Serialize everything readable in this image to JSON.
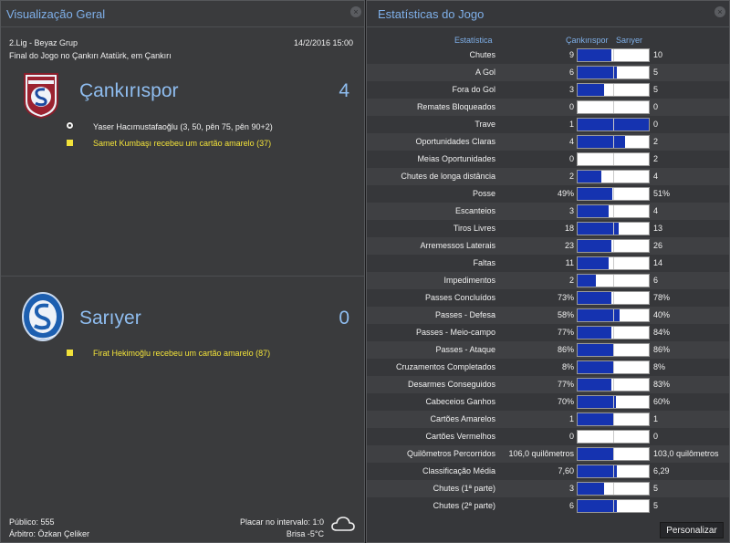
{
  "overview": {
    "title": "Visualização Geral",
    "competition": "2.Lig - Beyaz Grup",
    "datetime": "14/2/2016 15:00",
    "venue": "Final do Jogo no Çankırı Atatürk, em Çankırı",
    "home": {
      "name": "Çankırıspor",
      "score": "4",
      "events": [
        {
          "type": "goal",
          "text": "Yaser Hacımustafaoğlu (3, 50, pên 75, pên 90+2)"
        },
        {
          "type": "card",
          "text": "Samet Kumbaşı recebeu um cartão amarelo (37)"
        }
      ]
    },
    "away": {
      "name": "Sarıyer",
      "score": "0",
      "events": [
        {
          "type": "card",
          "text": "Firat Hekimoğlu recebeu um cartão amarelo (87)"
        }
      ]
    },
    "attendance": "Público: 555",
    "referee": "Árbitro: Özkan Çeliker",
    "halftime": "Placar no intervalo: 1:0",
    "weather": "Brisa -5°C",
    "weather_icon": "cloud-icon"
  },
  "stats": {
    "title": "Estatísticas do Jogo",
    "col_stat": "Estatística",
    "col_home": "Çankırıspor",
    "col_away": "Sarıyer",
    "button": "Personalizar",
    "bar_home_color": "#1533b0",
    "bar_away_color": "#ffffff",
    "rows": [
      {
        "label": "Chutes",
        "home": "9",
        "away": "10",
        "share": 0.47
      },
      {
        "label": "A Gol",
        "home": "6",
        "away": "5",
        "share": 0.55
      },
      {
        "label": "Fora do Gol",
        "home": "3",
        "away": "5",
        "share": 0.375
      },
      {
        "label": "Remates Bloqueados",
        "home": "0",
        "away": "0",
        "share": 0.0
      },
      {
        "label": "Trave",
        "home": "1",
        "away": "0",
        "share": 1.0
      },
      {
        "label": "Oportunidades Claras",
        "home": "4",
        "away": "2",
        "share": 0.67
      },
      {
        "label": "Meias Oportunidades",
        "home": "0",
        "away": "2",
        "share": 0.0
      },
      {
        "label": "Chutes de longa distância",
        "home": "2",
        "away": "4",
        "share": 0.33
      },
      {
        "label": "Posse",
        "home": "49%",
        "away": "51%",
        "share": 0.49
      },
      {
        "label": "Escanteios",
        "home": "3",
        "away": "4",
        "share": 0.43
      },
      {
        "label": "Tiros Livres",
        "home": "18",
        "away": "13",
        "share": 0.58
      },
      {
        "label": "Arremessos Laterais",
        "home": "23",
        "away": "26",
        "share": 0.47
      },
      {
        "label": "Faltas",
        "home": "11",
        "away": "14",
        "share": 0.44
      },
      {
        "label": "Impedimentos",
        "home": "2",
        "away": "6",
        "share": 0.25
      },
      {
        "label": "Passes Concluídos",
        "home": "73%",
        "away": "78%",
        "share": 0.48
      },
      {
        "label": "Passes - Defesa",
        "home": "58%",
        "away": "40%",
        "share": 0.59
      },
      {
        "label": "Passes - Meio-campo",
        "home": "77%",
        "away": "84%",
        "share": 0.48
      },
      {
        "label": "Passes - Ataque",
        "home": "86%",
        "away": "86%",
        "share": 0.5
      },
      {
        "label": "Cruzamentos Completados",
        "home": "8%",
        "away": "8%",
        "share": 0.5
      },
      {
        "label": "Desarmes Conseguidos",
        "home": "77%",
        "away": "83%",
        "share": 0.48
      },
      {
        "label": "Cabeceios Ganhos",
        "home": "70%",
        "away": "60%",
        "share": 0.54
      },
      {
        "label": "Cartões Amarelos",
        "home": "1",
        "away": "1",
        "share": 0.5
      },
      {
        "label": "Cartões Vermelhos",
        "home": "0",
        "away": "0",
        "share": 0.0
      },
      {
        "label": "Quilômetros Percorridos",
        "home": "106,0 quilômetros",
        "away": "103,0 quilômetros",
        "share": 0.51
      },
      {
        "label": "Classificação Média",
        "home": "7,60",
        "away": "6,29",
        "share": 0.55
      },
      {
        "label": "Chutes (1ª parte)",
        "home": "3",
        "away": "5",
        "share": 0.375
      },
      {
        "label": "Chutes (2ª parte)",
        "home": "6",
        "away": "5",
        "share": 0.55
      }
    ]
  }
}
